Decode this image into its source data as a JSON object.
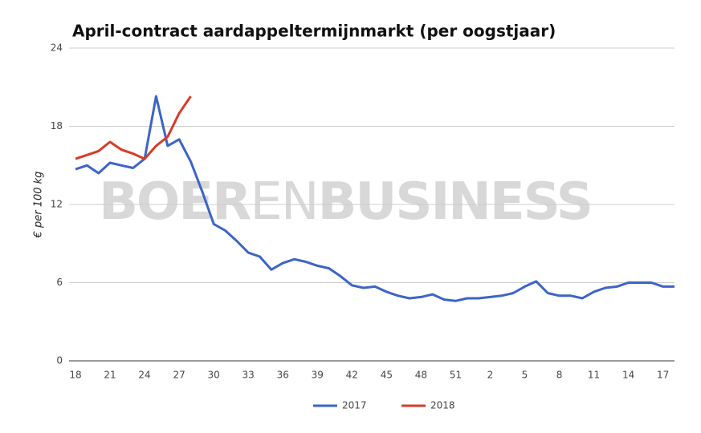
{
  "chart_data": {
    "type": "line",
    "title": "April-contract aardappeltermijnmarkt (per oogstjaar)",
    "y_label": "€ per 100 kg",
    "watermark": [
      "BOER",
      "EN",
      "BUSINESS"
    ],
    "categories": [
      "18",
      null,
      null,
      "21",
      null,
      null,
      "24",
      null,
      null,
      "27",
      null,
      null,
      "30",
      null,
      null,
      "33",
      null,
      null,
      "36",
      null,
      null,
      "39",
      null,
      null,
      "42",
      null,
      null,
      "45",
      null,
      null,
      "48",
      null,
      null,
      "51",
      null,
      null,
      "2",
      null,
      null,
      "5",
      null,
      null,
      "8",
      null,
      null,
      "11",
      null,
      null,
      "14",
      null,
      null,
      "17",
      null
    ],
    "series": [
      {
        "name": "2017",
        "color": "#3c64c8",
        "values": [
          14.7,
          15.0,
          14.4,
          15.2,
          15.0,
          14.8,
          15.5,
          20.3,
          16.5,
          17.0,
          15.3,
          13.0,
          10.5,
          10.0,
          9.2,
          8.3,
          8.0,
          7.0,
          7.5,
          7.8,
          7.6,
          7.3,
          7.1,
          6.5,
          5.8,
          5.6,
          5.7,
          5.3,
          5.0,
          4.8,
          4.9,
          5.1,
          4.7,
          4.6,
          4.8,
          4.8,
          4.9,
          5.0,
          5.2,
          5.7,
          6.1,
          5.2,
          5.0,
          5.0,
          4.8,
          5.3,
          5.6,
          5.7,
          6.0,
          6.0,
          6.0,
          5.7,
          5.7
        ]
      },
      {
        "name": "2018",
        "color": "#d63c28",
        "values": [
          15.5,
          15.8,
          16.1,
          16.8,
          16.2,
          15.9,
          15.5,
          16.5,
          17.2,
          19.0,
          20.3,
          null,
          null,
          null,
          null,
          null,
          null,
          null,
          null,
          null,
          null,
          null,
          null,
          null,
          null,
          null,
          null,
          null,
          null,
          null,
          null,
          null,
          null,
          null,
          null,
          null,
          null,
          null,
          null,
          null,
          null,
          null,
          null,
          null,
          null,
          null,
          null,
          null,
          null,
          null,
          null,
          null,
          null
        ]
      }
    ],
    "ylim": [
      0,
      24
    ],
    "yticks": [
      0,
      6,
      12,
      18,
      24
    ],
    "grid": true,
    "legend": "bottom"
  }
}
